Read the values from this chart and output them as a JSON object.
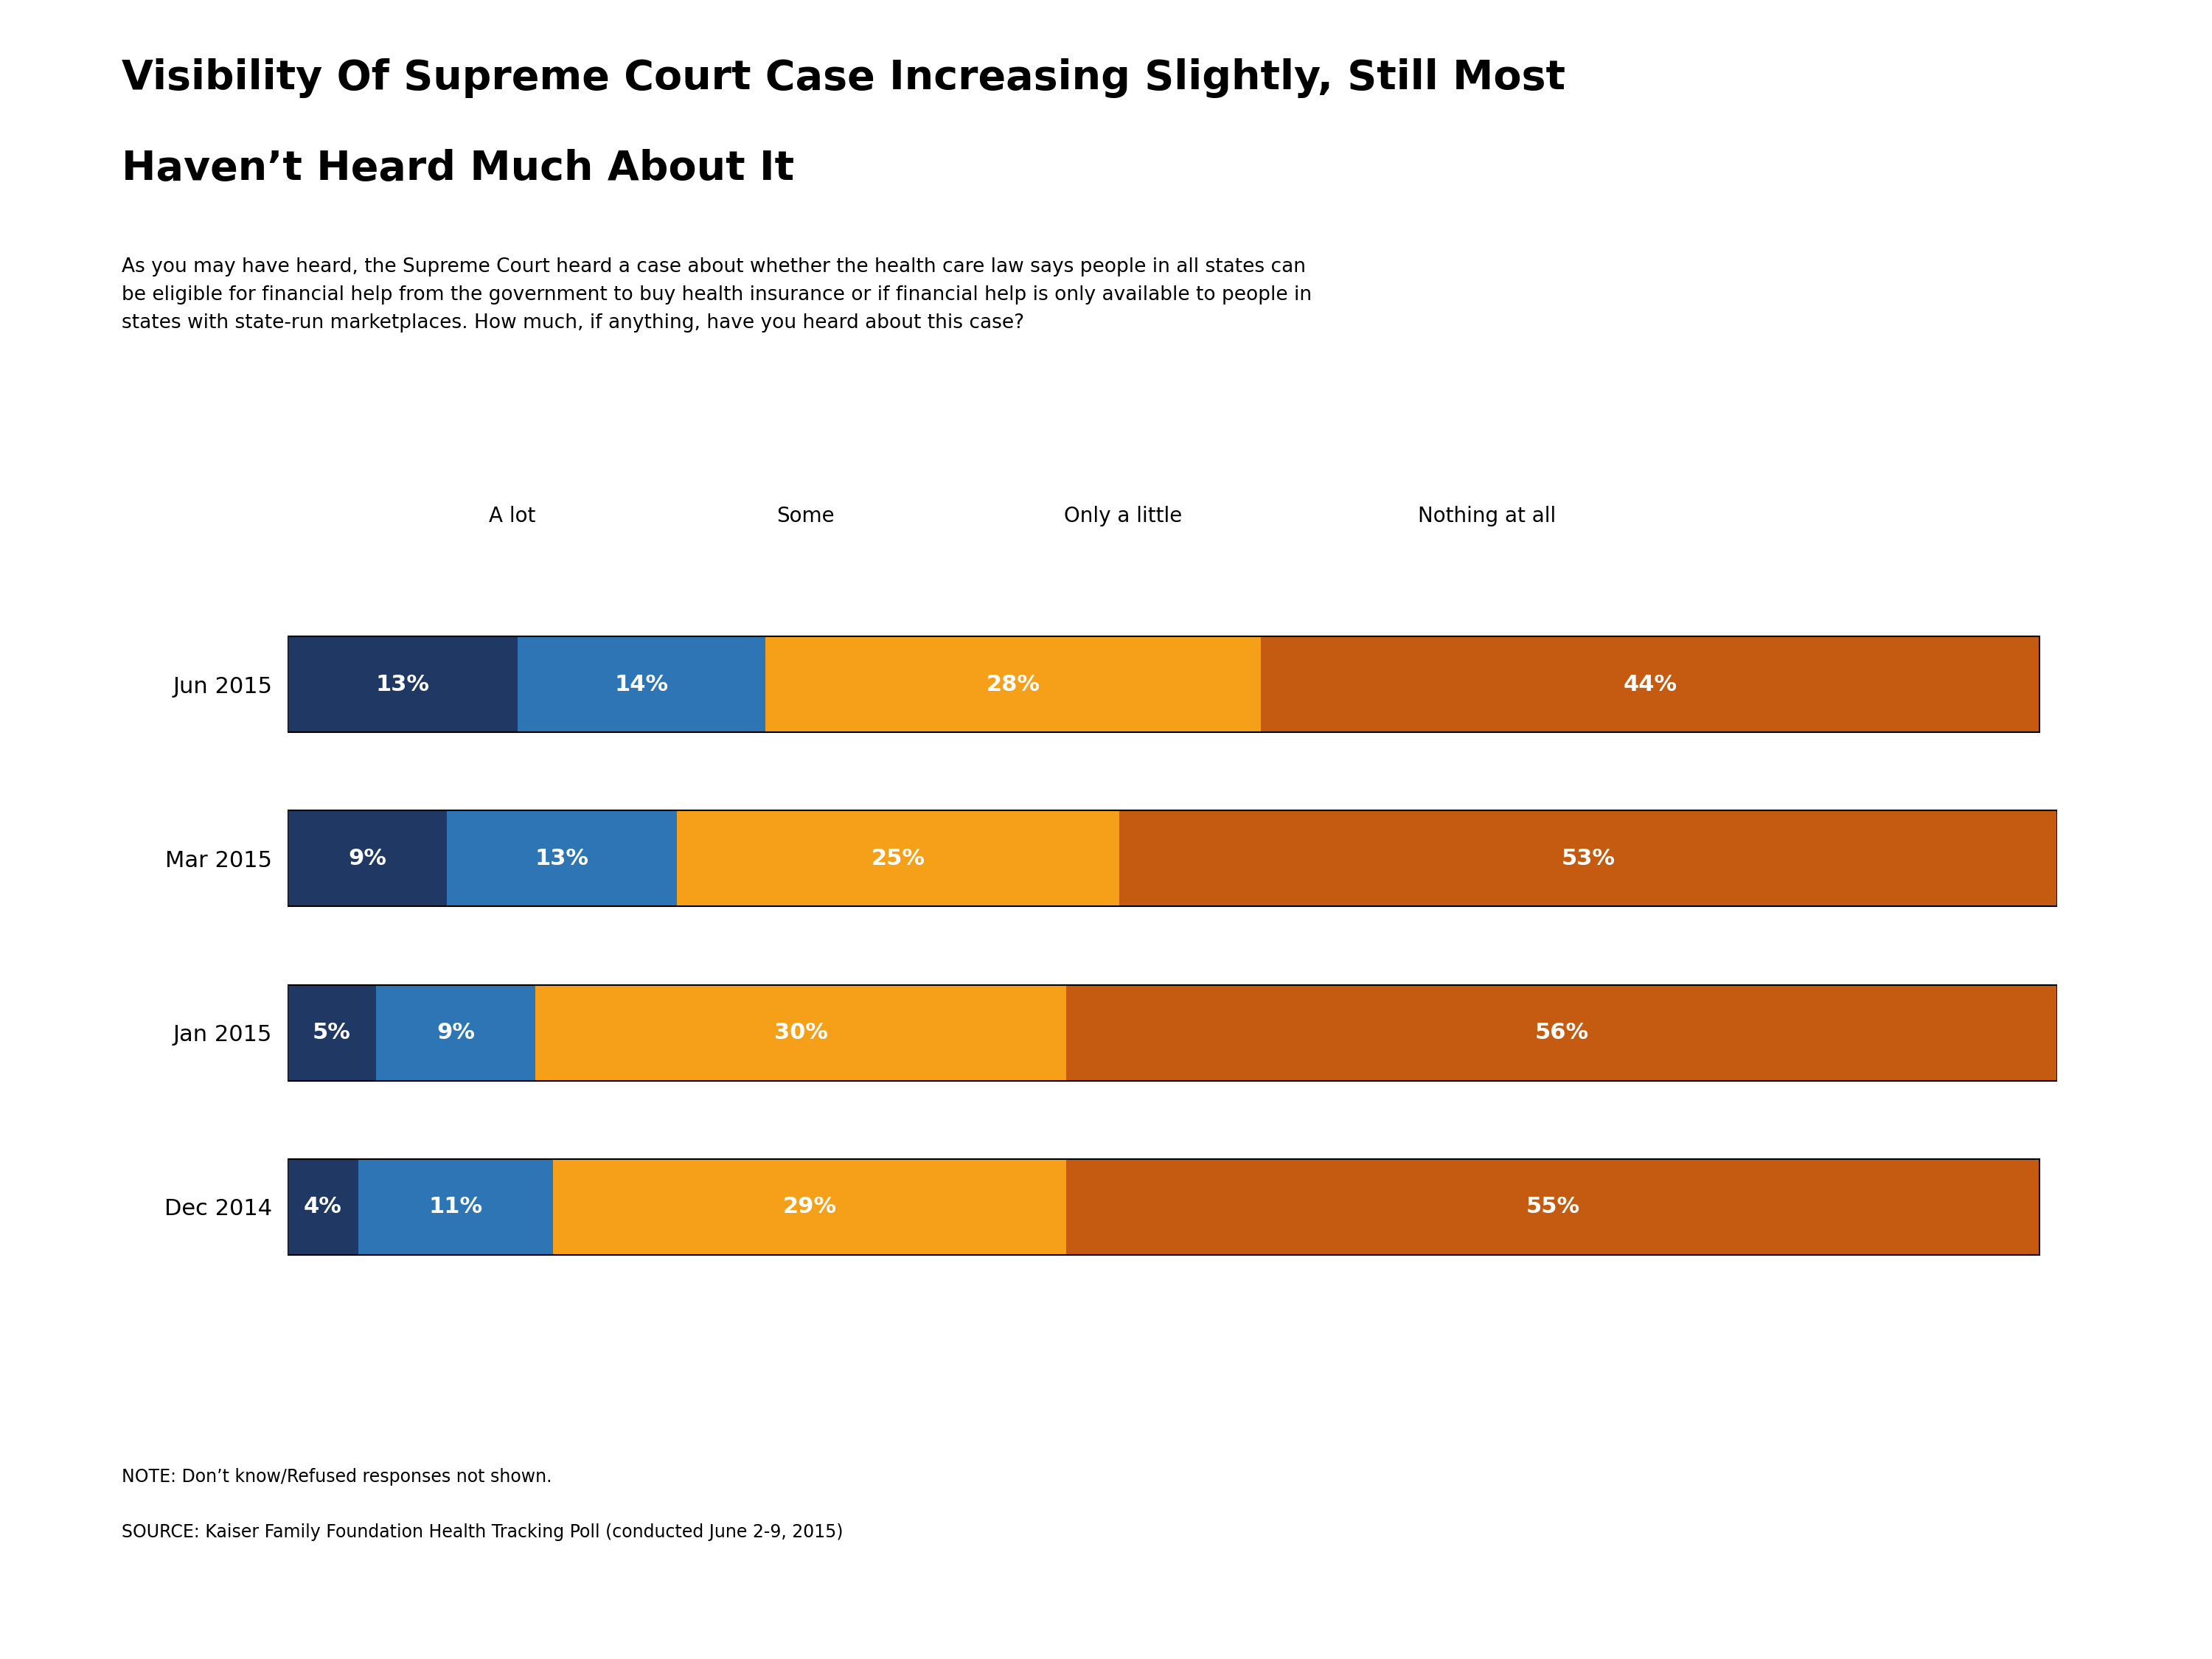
{
  "title_line1": "Visibility Of Supreme Court Case Increasing Slightly, Still Most",
  "title_line2": "Haven’t Heard Much About It",
  "subtitle": "As you may have heard, the Supreme Court heard a case about whether the health care law says people in all states can\nbe eligible for financial help from the government to buy health insurance or if financial help is only available to people in\nstates with state-run marketplaces. How much, if anything, have you heard about this case?",
  "categories": [
    "Jun 2015",
    "Mar 2015",
    "Jan 2015",
    "Dec 2014"
  ],
  "data": {
    "A lot": [
      13,
      9,
      5,
      4
    ],
    "Some": [
      14,
      13,
      9,
      11
    ],
    "Only a little": [
      28,
      25,
      30,
      29
    ],
    "Nothing at all": [
      44,
      53,
      56,
      55
    ]
  },
  "colors": {
    "A lot": "#1f3864",
    "Some": "#2e75b6",
    "Only a little": "#f6a01a",
    "Nothing at all": "#c55a11"
  },
  "legend_order": [
    "A lot",
    "Some",
    "Only a little",
    "Nothing at all"
  ],
  "note": "NOTE: Don’t know/Refused responses not shown.",
  "source": "SOURCE: Kaiser Family Foundation Health Tracking Poll (conducted June 2-9, 2015)",
  "logo_color": "#1f3864",
  "bar_height": 0.55,
  "background_color": "#ffffff",
  "text_color": "#000000",
  "label_color_white": "#ffffff",
  "title_fontsize": 40,
  "subtitle_fontsize": 19,
  "legend_fontsize": 20,
  "bar_label_fontsize": 22,
  "ytick_fontsize": 22,
  "note_fontsize": 17
}
